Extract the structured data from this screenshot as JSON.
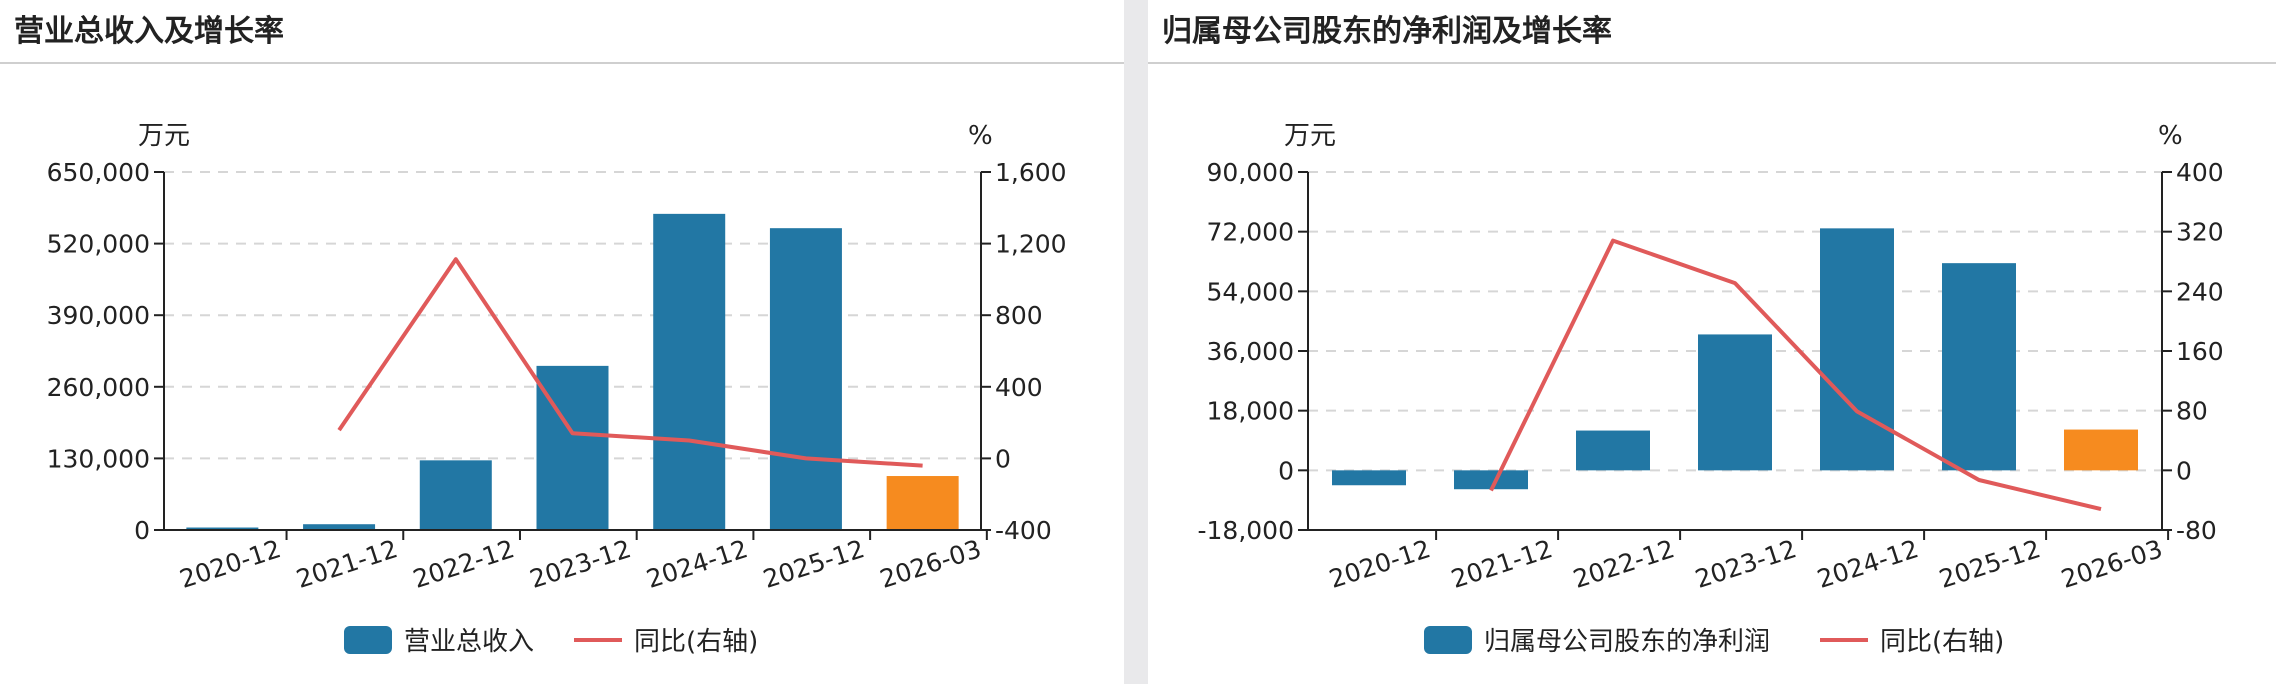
{
  "colors": {
    "bar": "#2277a4",
    "bar_highlight": "#f68b1f",
    "line": "#e05a5a",
    "grid": "#d6d6d6",
    "axis": "#222222"
  },
  "charts": [
    {
      "title": "营业总收入及增长率",
      "left_unit": "万元",
      "right_unit": "%",
      "legend_bar": "营业总收入",
      "legend_line": "同比(右轴)",
      "chart_data": {
        "type": "bar",
        "title": "营业总收入及增长率",
        "categories": [
          "2020-12",
          "2021-12",
          "2022-12",
          "2023-12",
          "2024-12",
          "2025-12",
          "2026-03"
        ],
        "series": [
          {
            "name": "营业总收入",
            "type": "bar",
            "axis": "left",
            "values": [
              4500,
              10500,
              126500,
              298000,
              574000,
              548000,
              98000
            ],
            "highlight_index": 6
          },
          {
            "name": "同比(右轴)",
            "type": "line",
            "axis": "right",
            "values": [
              null,
              158,
              1113,
              140,
              100,
              0,
              -40
            ]
          }
        ],
        "ylabel": "万元",
        "ylim": [
          0,
          650000
        ],
        "yticks": [
          0,
          130000,
          260000,
          390000,
          520000,
          650000
        ],
        "yticks_label": [
          "0",
          "130,000",
          "260,000",
          "390,000",
          "520,000",
          "650,000"
        ],
        "y2label": "%",
        "y2lim": [
          -400,
          1600
        ],
        "y2ticks": [
          -400,
          0,
          400,
          800,
          1200,
          1600
        ],
        "y2ticks_label": [
          "-400",
          "0",
          "400",
          "800",
          "1,200",
          "1,600"
        ],
        "grid": true,
        "legend": "bottom"
      }
    },
    {
      "title": "归属母公司股东的净利润及增长率",
      "left_unit": "万元",
      "right_unit": "%",
      "legend_bar": "归属母公司股东的净利润",
      "legend_line": "同比(右轴)",
      "chart_data": {
        "type": "bar",
        "title": "归属母公司股东的净利润及增长率",
        "categories": [
          "2020-12",
          "2021-12",
          "2022-12",
          "2023-12",
          "2024-12",
          "2025-12",
          "2026-03"
        ],
        "series": [
          {
            "name": "归属母公司股东的净利润",
            "type": "bar",
            "axis": "left",
            "values": [
              -4500,
              -5700,
              12000,
              41000,
              73000,
              62500,
              12300
            ],
            "highlight_index": 6
          },
          {
            "name": "同比(右轴)",
            "type": "line",
            "axis": "right",
            "values": [
              null,
              -27,
              308,
              251,
              79,
              -13,
              -52
            ]
          }
        ],
        "ylabel": "万元",
        "ylim": [
          -18000,
          90000
        ],
        "yticks": [
          -18000,
          0,
          18000,
          36000,
          54000,
          72000,
          90000
        ],
        "yticks_label": [
          "-18,000",
          "0",
          "18,000",
          "36,000",
          "54,000",
          "72,000",
          "90,000"
        ],
        "y2label": "%",
        "y2lim": [
          -80,
          400
        ],
        "y2ticks": [
          -80,
          0,
          80,
          160,
          240,
          320,
          400
        ],
        "y2ticks_label": [
          "-80",
          "0",
          "80",
          "160",
          "240",
          "320",
          "400"
        ],
        "grid": true,
        "legend": "bottom"
      }
    }
  ]
}
